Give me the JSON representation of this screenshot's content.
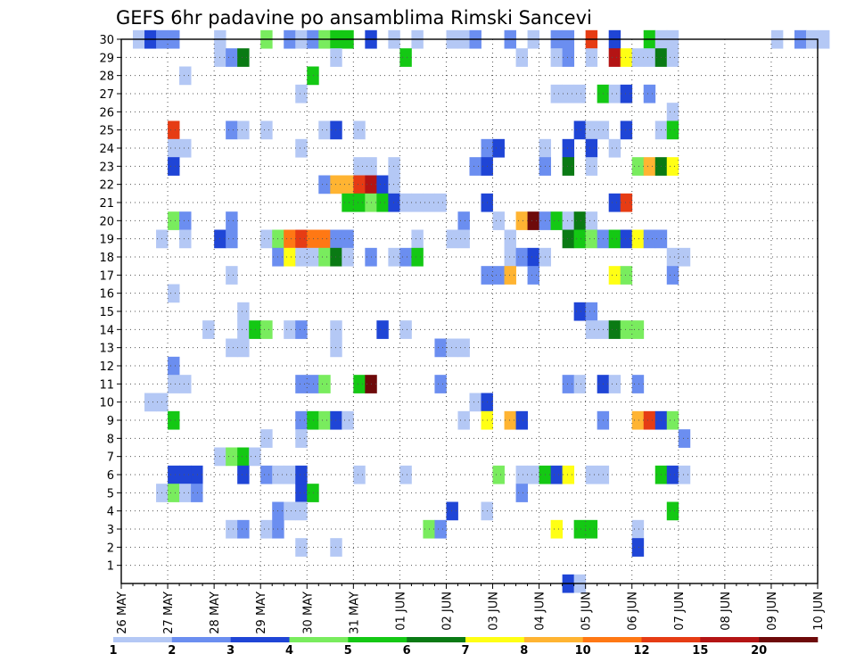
{
  "chart_data": {
    "type": "heatmap",
    "title": "GEFS 6hr padavine po ansamblima Rimski Sancevi",
    "x_tick_labels": [
      "26 MAY",
      "27 MAY",
      "28 MAY",
      "29 MAY",
      "30 MAY",
      "31 MAY",
      "01 JUN",
      "02 JUN",
      "03 JUN",
      "04 JUN",
      "05 JUN",
      "06 JUN",
      "07 JUN",
      "08 JUN",
      "09 JUN",
      "10 JUN"
    ],
    "x_range_days": [
      0,
      15
    ],
    "steps_per_day": 4,
    "y_tick_labels": [
      1,
      2,
      3,
      4,
      5,
      6,
      7,
      8,
      9,
      10,
      11,
      12,
      13,
      14,
      15,
      16,
      17,
      18,
      19,
      20,
      21,
      22,
      23,
      24,
      25,
      26,
      27,
      28,
      29,
      30
    ],
    "y_range_members": [
      0,
      30
    ],
    "grid": "dotted",
    "colorbar": {
      "labels": [
        "1",
        "2",
        "3",
        "4",
        "5",
        "6",
        "7",
        "8",
        "10",
        "12",
        "15",
        "20"
      ],
      "colors": [
        "#b4c8f5",
        "#6b8ef0",
        "#1f45d6",
        "#79ec5e",
        "#14c814",
        "#0a7a14",
        "#ffff14",
        "#ffb432",
        "#ff7814",
        "#e63c14",
        "#b41414",
        "#6e0a0a"
      ]
    },
    "cells": [
      [
        1,
        30,
        0
      ],
      [
        2,
        30,
        2
      ],
      [
        3,
        30,
        1
      ],
      [
        4,
        30,
        1
      ],
      [
        8,
        30,
        0
      ],
      [
        12,
        30,
        3
      ],
      [
        14,
        30,
        1
      ],
      [
        15,
        30,
        0
      ],
      [
        16,
        30,
        1
      ],
      [
        17,
        30,
        3
      ],
      [
        18,
        30,
        4
      ],
      [
        19,
        30,
        4
      ],
      [
        21,
        30,
        2
      ],
      [
        23,
        30,
        0
      ],
      [
        25,
        30,
        0
      ],
      [
        28,
        30,
        0
      ],
      [
        29,
        30,
        0
      ],
      [
        30,
        30,
        1
      ],
      [
        33,
        30,
        1
      ],
      [
        35,
        30,
        0
      ],
      [
        37,
        30,
        1
      ],
      [
        38,
        30,
        1
      ],
      [
        40,
        30,
        9
      ],
      [
        42,
        30,
        2
      ],
      [
        45,
        30,
        4
      ],
      [
        46,
        30,
        0
      ],
      [
        47,
        30,
        0
      ],
      [
        56,
        30,
        0
      ],
      [
        58,
        30,
        1
      ],
      [
        59,
        30,
        0
      ],
      [
        60,
        30,
        0
      ],
      [
        8,
        29,
        0
      ],
      [
        9,
        29,
        1
      ],
      [
        10,
        29,
        5
      ],
      [
        18,
        29,
        0
      ],
      [
        24,
        29,
        4
      ],
      [
        34,
        29,
        0
      ],
      [
        37,
        29,
        0
      ],
      [
        38,
        29,
        1
      ],
      [
        40,
        29,
        0
      ],
      [
        42,
        29,
        10
      ],
      [
        43,
        29,
        6
      ],
      [
        44,
        29,
        0
      ],
      [
        45,
        29,
        0
      ],
      [
        46,
        29,
        5
      ],
      [
        47,
        29,
        0
      ],
      [
        5,
        28,
        0
      ],
      [
        16,
        28,
        4
      ],
      [
        15,
        27,
        0
      ],
      [
        37,
        27,
        0
      ],
      [
        38,
        27,
        0
      ],
      [
        39,
        27,
        0
      ],
      [
        41,
        27,
        4
      ],
      [
        42,
        27,
        0
      ],
      [
        43,
        27,
        2
      ],
      [
        45,
        27,
        1
      ],
      [
        47,
        26,
        0
      ],
      [
        4,
        25,
        9
      ],
      [
        9,
        25,
        1
      ],
      [
        10,
        25,
        0
      ],
      [
        12,
        25,
        0
      ],
      [
        17,
        25,
        0
      ],
      [
        18,
        25,
        2
      ],
      [
        20,
        25,
        0
      ],
      [
        39,
        25,
        2
      ],
      [
        40,
        25,
        0
      ],
      [
        41,
        25,
        0
      ],
      [
        43,
        25,
        2
      ],
      [
        46,
        25,
        0
      ],
      [
        47,
        25,
        4
      ],
      [
        4,
        24,
        0
      ],
      [
        5,
        24,
        0
      ],
      [
        15,
        24,
        0
      ],
      [
        31,
        24,
        1
      ],
      [
        32,
        24,
        2
      ],
      [
        36,
        24,
        0
      ],
      [
        38,
        24,
        2
      ],
      [
        40,
        24,
        2
      ],
      [
        42,
        24,
        0
      ],
      [
        4,
        23,
        2
      ],
      [
        20,
        23,
        0
      ],
      [
        21,
        23,
        0
      ],
      [
        23,
        23,
        0
      ],
      [
        30,
        23,
        1
      ],
      [
        31,
        23,
        2
      ],
      [
        36,
        23,
        1
      ],
      [
        38,
        23,
        5
      ],
      [
        40,
        23,
        0
      ],
      [
        44,
        23,
        3
      ],
      [
        45,
        23,
        7
      ],
      [
        46,
        23,
        5
      ],
      [
        47,
        23,
        6
      ],
      [
        17,
        22,
        1
      ],
      [
        18,
        22,
        7
      ],
      [
        19,
        22,
        7
      ],
      [
        20,
        22,
        9
      ],
      [
        21,
        22,
        10
      ],
      [
        22,
        22,
        2
      ],
      [
        23,
        22,
        0
      ],
      [
        19,
        21,
        4
      ],
      [
        20,
        21,
        4
      ],
      [
        21,
        21,
        3
      ],
      [
        22,
        21,
        4
      ],
      [
        23,
        21,
        2
      ],
      [
        24,
        21,
        0
      ],
      [
        25,
        21,
        0
      ],
      [
        26,
        21,
        0
      ],
      [
        27,
        21,
        0
      ],
      [
        31,
        21,
        2
      ],
      [
        42,
        21,
        2
      ],
      [
        43,
        21,
        9
      ],
      [
        4,
        20,
        3
      ],
      [
        5,
        20,
        1
      ],
      [
        9,
        20,
        1
      ],
      [
        29,
        20,
        1
      ],
      [
        32,
        20,
        0
      ],
      [
        34,
        20,
        7
      ],
      [
        35,
        20,
        11
      ],
      [
        36,
        20,
        1
      ],
      [
        37,
        20,
        4
      ],
      [
        38,
        20,
        0
      ],
      [
        39,
        20,
        5
      ],
      [
        40,
        20,
        0
      ],
      [
        3,
        19,
        0
      ],
      [
        5,
        19,
        0
      ],
      [
        8,
        19,
        2
      ],
      [
        9,
        19,
        1
      ],
      [
        12,
        19,
        0
      ],
      [
        13,
        19,
        3
      ],
      [
        14,
        19,
        8
      ],
      [
        15,
        19,
        9
      ],
      [
        16,
        19,
        8
      ],
      [
        17,
        19,
        8
      ],
      [
        18,
        19,
        1
      ],
      [
        19,
        19,
        1
      ],
      [
        25,
        19,
        0
      ],
      [
        28,
        19,
        0
      ],
      [
        29,
        19,
        0
      ],
      [
        33,
        19,
        0
      ],
      [
        38,
        19,
        5
      ],
      [
        39,
        19,
        4
      ],
      [
        40,
        19,
        3
      ],
      [
        41,
        19,
        1
      ],
      [
        42,
        19,
        4
      ],
      [
        43,
        19,
        2
      ],
      [
        44,
        19,
        6
      ],
      [
        45,
        19,
        1
      ],
      [
        46,
        19,
        1
      ],
      [
        13,
        18,
        1
      ],
      [
        14,
        18,
        6
      ],
      [
        15,
        18,
        0
      ],
      [
        16,
        18,
        0
      ],
      [
        17,
        18,
        3
      ],
      [
        18,
        18,
        5
      ],
      [
        19,
        18,
        0
      ],
      [
        21,
        18,
        1
      ],
      [
        23,
        18,
        0
      ],
      [
        24,
        18,
        1
      ],
      [
        25,
        18,
        4
      ],
      [
        33,
        18,
        0
      ],
      [
        34,
        18,
        1
      ],
      [
        35,
        18,
        2
      ],
      [
        36,
        18,
        0
      ],
      [
        47,
        18,
        0
      ],
      [
        48,
        18,
        0
      ],
      [
        9,
        17,
        0
      ],
      [
        31,
        17,
        1
      ],
      [
        32,
        17,
        1
      ],
      [
        33,
        17,
        7
      ],
      [
        35,
        17,
        1
      ],
      [
        42,
        17,
        6
      ],
      [
        43,
        17,
        3
      ],
      [
        47,
        17,
        1
      ],
      [
        4,
        16,
        0
      ],
      [
        10,
        15,
        0
      ],
      [
        39,
        15,
        2
      ],
      [
        40,
        15,
        1
      ],
      [
        7,
        14,
        0
      ],
      [
        10,
        14,
        0
      ],
      [
        11,
        14,
        4
      ],
      [
        12,
        14,
        3
      ],
      [
        14,
        14,
        0
      ],
      [
        15,
        14,
        1
      ],
      [
        18,
        14,
        0
      ],
      [
        22,
        14,
        2
      ],
      [
        24,
        14,
        0
      ],
      [
        40,
        14,
        0
      ],
      [
        41,
        14,
        0
      ],
      [
        42,
        14,
        5
      ],
      [
        43,
        14,
        3
      ],
      [
        44,
        14,
        3
      ],
      [
        9,
        13,
        0
      ],
      [
        10,
        13,
        0
      ],
      [
        18,
        13,
        0
      ],
      [
        27,
        13,
        1
      ],
      [
        28,
        13,
        0
      ],
      [
        29,
        13,
        0
      ],
      [
        4,
        12,
        1
      ],
      [
        4,
        11,
        0
      ],
      [
        5,
        11,
        0
      ],
      [
        15,
        11,
        1
      ],
      [
        16,
        11,
        1
      ],
      [
        17,
        11,
        3
      ],
      [
        20,
        11,
        4
      ],
      [
        21,
        11,
        11
      ],
      [
        27,
        11,
        1
      ],
      [
        38,
        11,
        1
      ],
      [
        39,
        11,
        0
      ],
      [
        41,
        11,
        2
      ],
      [
        42,
        11,
        0
      ],
      [
        44,
        11,
        1
      ],
      [
        2,
        10,
        0
      ],
      [
        3,
        10,
        0
      ],
      [
        30,
        10,
        0
      ],
      [
        31,
        10,
        2
      ],
      [
        4,
        9,
        4
      ],
      [
        15,
        9,
        1
      ],
      [
        16,
        9,
        4
      ],
      [
        17,
        9,
        3
      ],
      [
        18,
        9,
        2
      ],
      [
        19,
        9,
        0
      ],
      [
        29,
        9,
        0
      ],
      [
        31,
        9,
        6
      ],
      [
        33,
        9,
        7
      ],
      [
        34,
        9,
        2
      ],
      [
        41,
        9,
        1
      ],
      [
        44,
        9,
        7
      ],
      [
        45,
        9,
        9
      ],
      [
        46,
        9,
        2
      ],
      [
        47,
        9,
        3
      ],
      [
        12,
        8,
        0
      ],
      [
        15,
        8,
        0
      ],
      [
        48,
        8,
        1
      ],
      [
        8,
        7,
        0
      ],
      [
        9,
        7,
        3
      ],
      [
        10,
        7,
        4
      ],
      [
        11,
        7,
        0
      ],
      [
        4,
        6,
        2
      ],
      [
        5,
        6,
        2
      ],
      [
        6,
        6,
        2
      ],
      [
        10,
        6,
        2
      ],
      [
        12,
        6,
        1
      ],
      [
        13,
        6,
        0
      ],
      [
        14,
        6,
        0
      ],
      [
        15,
        6,
        2
      ],
      [
        20,
        6,
        0
      ],
      [
        24,
        6,
        0
      ],
      [
        32,
        6,
        3
      ],
      [
        34,
        6,
        0
      ],
      [
        35,
        6,
        0
      ],
      [
        36,
        6,
        4
      ],
      [
        37,
        6,
        2
      ],
      [
        38,
        6,
        6
      ],
      [
        40,
        6,
        0
      ],
      [
        41,
        6,
        0
      ],
      [
        46,
        6,
        4
      ],
      [
        47,
        6,
        2
      ],
      [
        48,
        6,
        0
      ],
      [
        3,
        5,
        0
      ],
      [
        4,
        5,
        3
      ],
      [
        5,
        5,
        0
      ],
      [
        6,
        5,
        1
      ],
      [
        15,
        5,
        2
      ],
      [
        16,
        5,
        4
      ],
      [
        34,
        5,
        1
      ],
      [
        13,
        4,
        1
      ],
      [
        14,
        4,
        0
      ],
      [
        15,
        4,
        0
      ],
      [
        28,
        4,
        2
      ],
      [
        31,
        4,
        0
      ],
      [
        47,
        4,
        4
      ],
      [
        9,
        3,
        0
      ],
      [
        10,
        3,
        1
      ],
      [
        12,
        3,
        0
      ],
      [
        13,
        3,
        1
      ],
      [
        26,
        3,
        3
      ],
      [
        27,
        3,
        1
      ],
      [
        37,
        3,
        6
      ],
      [
        39,
        3,
        4
      ],
      [
        40,
        3,
        4
      ],
      [
        44,
        3,
        0
      ],
      [
        15,
        2,
        0
      ],
      [
        18,
        2,
        0
      ],
      [
        44,
        2,
        2
      ],
      [
        38,
        0,
        2
      ],
      [
        39,
        0,
        0
      ]
    ]
  }
}
